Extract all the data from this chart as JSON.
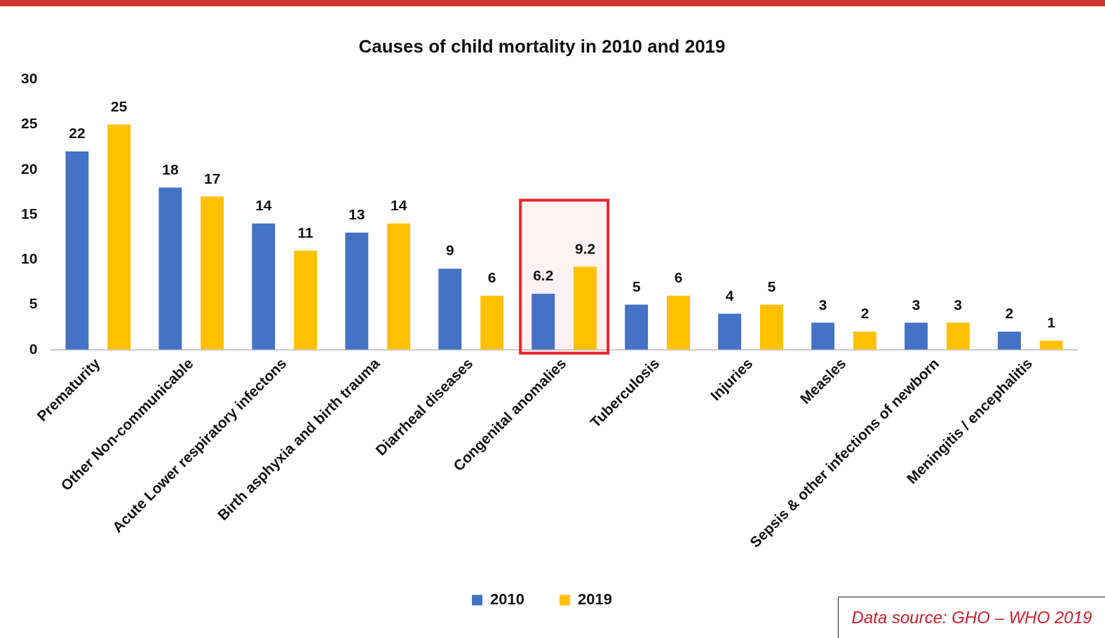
{
  "chart_data": {
    "type": "bar",
    "title": "Causes of child mortality in 2010 and 2019",
    "categories": [
      "Prematurity",
      "Other Non-communicable",
      "Acute Lower respiratory infectons",
      "Birth asphyxia and birth trauma",
      "Diarrheal diseases",
      "Congenital anomalies",
      "Tuberculosis",
      "Injuries",
      "Measles",
      "Sepsis & other infections of newborn",
      "Meningitis / encephalitis"
    ],
    "series": [
      {
        "name": "2010",
        "color": "#4472c4",
        "values": [
          22,
          18,
          14,
          13,
          9,
          6.2,
          5,
          4,
          3,
          3,
          2
        ]
      },
      {
        "name": "2019",
        "color": "#ffc000",
        "values": [
          25,
          17,
          11,
          14,
          6,
          9.2,
          6,
          5,
          2,
          3,
          1
        ]
      }
    ],
    "ylim": [
      0,
      30
    ],
    "yticks": [
      0,
      5,
      10,
      15,
      20,
      25,
      30
    ],
    "grid": false,
    "legend": "bottom",
    "data_labels": true,
    "bands": [
      {
        "axis": "x",
        "from": "Congenital anomalies",
        "to": "Congenital anomalies",
        "color": "#e8262b"
      }
    ],
    "annotations": [
      "Data source: GHO – WHO 2019"
    ]
  }
}
